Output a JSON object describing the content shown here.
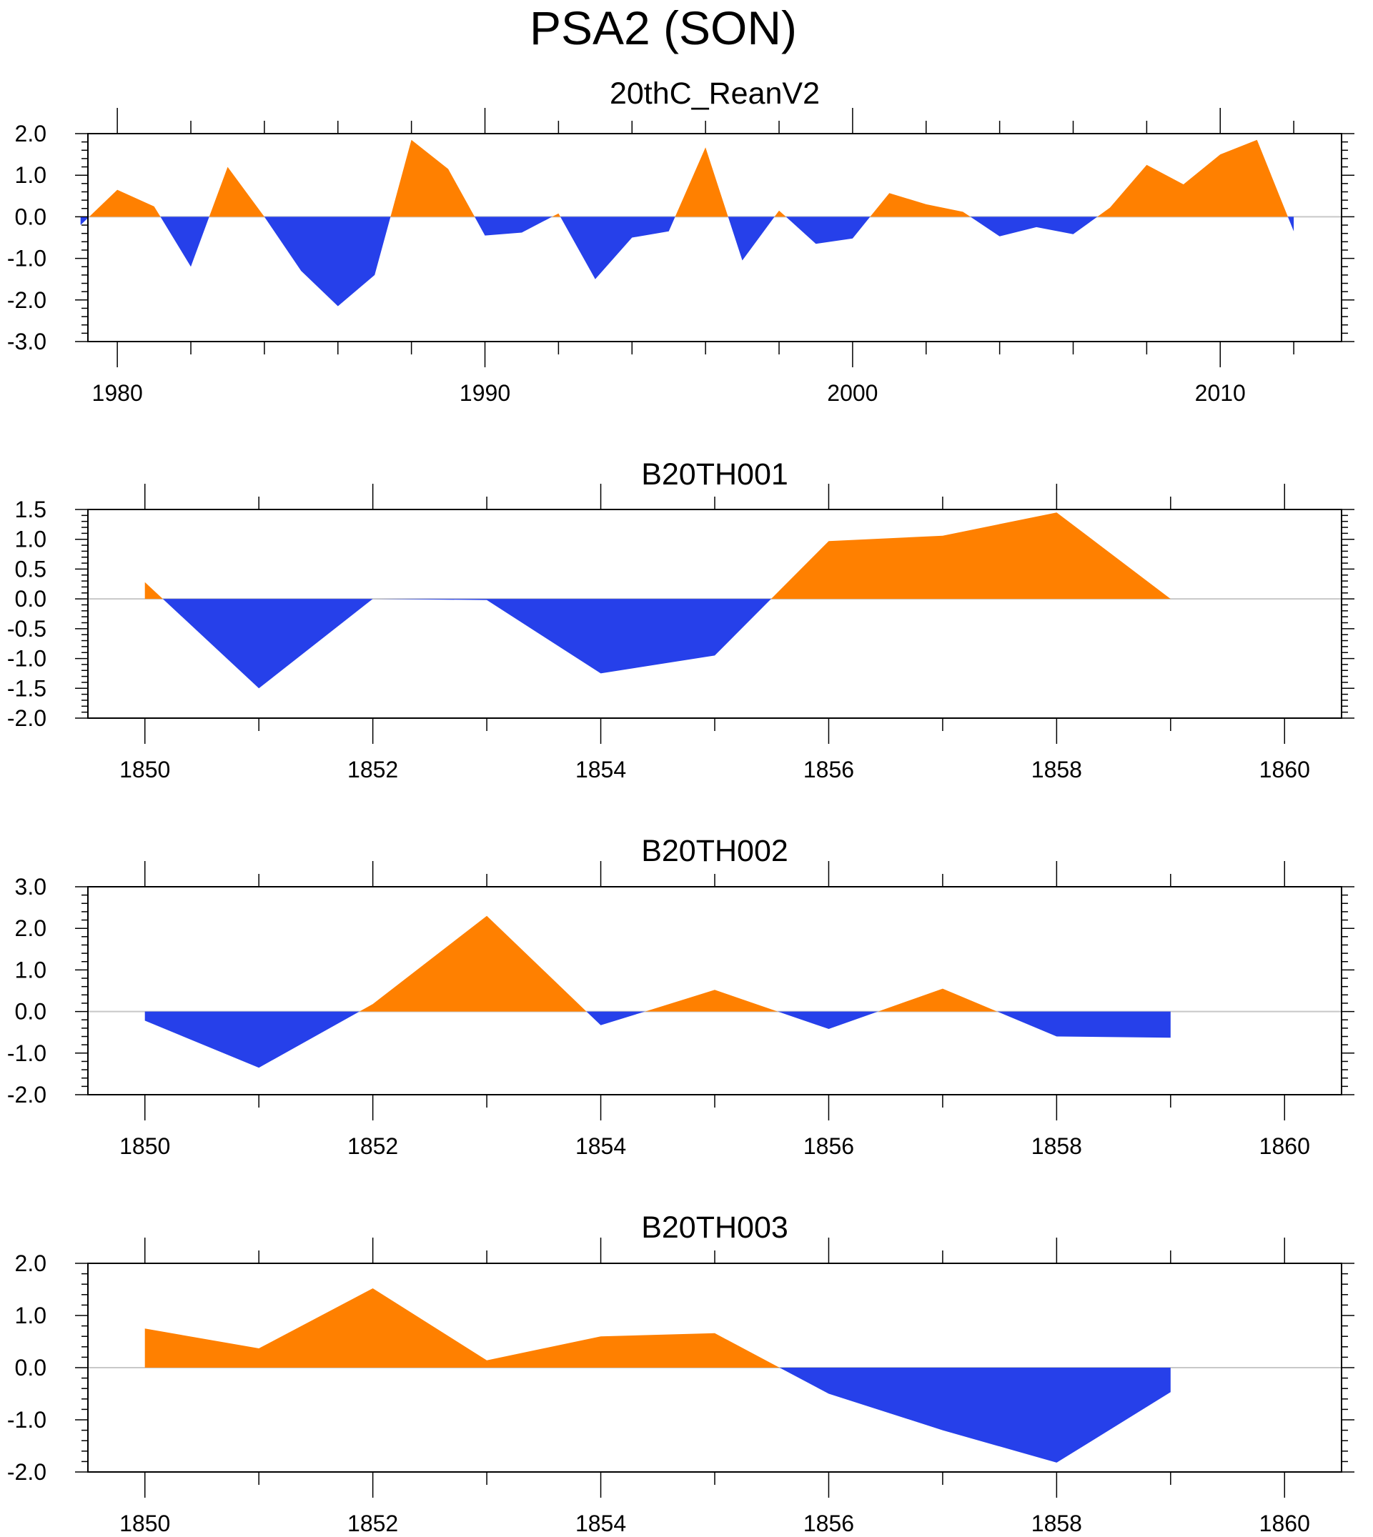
{
  "figure": {
    "title": "PSA2 (SON)",
    "positive_color": "#ff8000",
    "negative_color": "#2640ea",
    "zero_line_color": "#c8c8c8"
  },
  "chart_data": [
    {
      "type": "area",
      "title": "20thC_ReanV2",
      "xlabel": "",
      "ylabel": "",
      "x": [
        1979,
        1980,
        1981,
        1982,
        1983,
        1984,
        1985,
        1986,
        1987,
        1988,
        1989,
        1990,
        1991,
        1992,
        1993,
        1994,
        1995,
        1996,
        1997,
        1998,
        1999,
        2000,
        2001,
        2002,
        2003,
        2004,
        2005,
        2006,
        2007,
        2008,
        2009,
        2010,
        2011,
        2012
      ],
      "values": [
        -0.2,
        0.65,
        0.25,
        -1.2,
        1.2,
        0.0,
        -1.3,
        -2.15,
        -1.4,
        1.85,
        1.15,
        -0.45,
        -0.38,
        0.08,
        -1.5,
        -0.5,
        -0.35,
        1.67,
        -1.05,
        0.15,
        -0.65,
        -0.52,
        0.57,
        0.3,
        0.12,
        -0.47,
        -0.25,
        -0.42,
        0.22,
        1.25,
        0.78,
        1.5,
        1.85,
        -0.35
      ],
      "xlim": [
        1979.2,
        2013.3
      ],
      "ylim": [
        -3.0,
        2.0
      ],
      "xticks": [
        1980,
        1990,
        2000,
        2010
      ],
      "xtick_labels": [
        "1980",
        "1990",
        "2000",
        "2010"
      ],
      "yticks": [
        2.0,
        1.0,
        0.0,
        -1.0,
        -2.0,
        -3.0
      ],
      "ytick_labels": [
        "2.0",
        "1.0",
        "0.0",
        "-1.0",
        "-2.0",
        "-3.0"
      ]
    },
    {
      "type": "area",
      "title": "B20TH001",
      "xlabel": "",
      "ylabel": "",
      "x": [
        1850,
        1851,
        1852,
        1853,
        1854,
        1855,
        1856,
        1857,
        1858,
        1859
      ],
      "values": [
        0.28,
        -1.5,
        0.0,
        -0.02,
        -1.25,
        -0.95,
        0.97,
        1.06,
        1.45,
        0.0
      ],
      "xlim": [
        1849.5,
        1860.5
      ],
      "ylim": [
        -2.0,
        1.5
      ],
      "xticks": [
        1850,
        1852,
        1854,
        1856,
        1858,
        1860
      ],
      "xtick_labels": [
        "1850",
        "1852",
        "1854",
        "1856",
        "1858",
        "1860"
      ],
      "yticks": [
        1.5,
        1.0,
        0.5,
        0.0,
        -0.5,
        -1.0,
        -1.5,
        -2.0
      ],
      "ytick_labels": [
        "1.5",
        "1.0",
        "0.5",
        "0.0",
        "-0.5",
        "-1.0",
        "-1.5",
        "-2.0"
      ]
    },
    {
      "type": "area",
      "title": "B20TH002",
      "xlabel": "",
      "ylabel": "",
      "x": [
        1850,
        1851,
        1852,
        1853,
        1854,
        1855,
        1856,
        1857,
        1858,
        1859
      ],
      "values": [
        -0.22,
        -1.35,
        0.18,
        2.3,
        -0.33,
        0.52,
        -0.42,
        0.55,
        -0.6,
        -0.63
      ],
      "xlim": [
        1849.5,
        1860.5
      ],
      "ylim": [
        -2.0,
        3.0
      ],
      "xticks": [
        1850,
        1852,
        1854,
        1856,
        1858,
        1860
      ],
      "xtick_labels": [
        "1850",
        "1852",
        "1854",
        "1856",
        "1858",
        "1860"
      ],
      "yticks": [
        3.0,
        2.0,
        1.0,
        0.0,
        -1.0,
        -2.0
      ],
      "ytick_labels": [
        "3.0",
        "2.0",
        "1.0",
        "0.0",
        "-1.0",
        "-2.0"
      ]
    },
    {
      "type": "area",
      "title": "B20TH003",
      "xlabel": "",
      "ylabel": "",
      "x": [
        1850,
        1851,
        1852,
        1853,
        1854,
        1855,
        1856,
        1857,
        1858,
        1859
      ],
      "values": [
        0.75,
        0.37,
        1.52,
        0.14,
        0.6,
        0.66,
        -0.5,
        -1.2,
        -1.82,
        -0.47
      ],
      "xlim": [
        1849.5,
        1860.5
      ],
      "ylim": [
        -2.0,
        2.0
      ],
      "xticks": [
        1850,
        1852,
        1854,
        1856,
        1858,
        1860
      ],
      "xtick_labels": [
        "1850",
        "1852",
        "1854",
        "1856",
        "1858",
        "1860"
      ],
      "yticks": [
        2.0,
        1.0,
        0.0,
        -1.0,
        -2.0
      ],
      "ytick_labels": [
        "2.0",
        "1.0",
        "0.0",
        "-1.0",
        "-2.0"
      ]
    }
  ]
}
